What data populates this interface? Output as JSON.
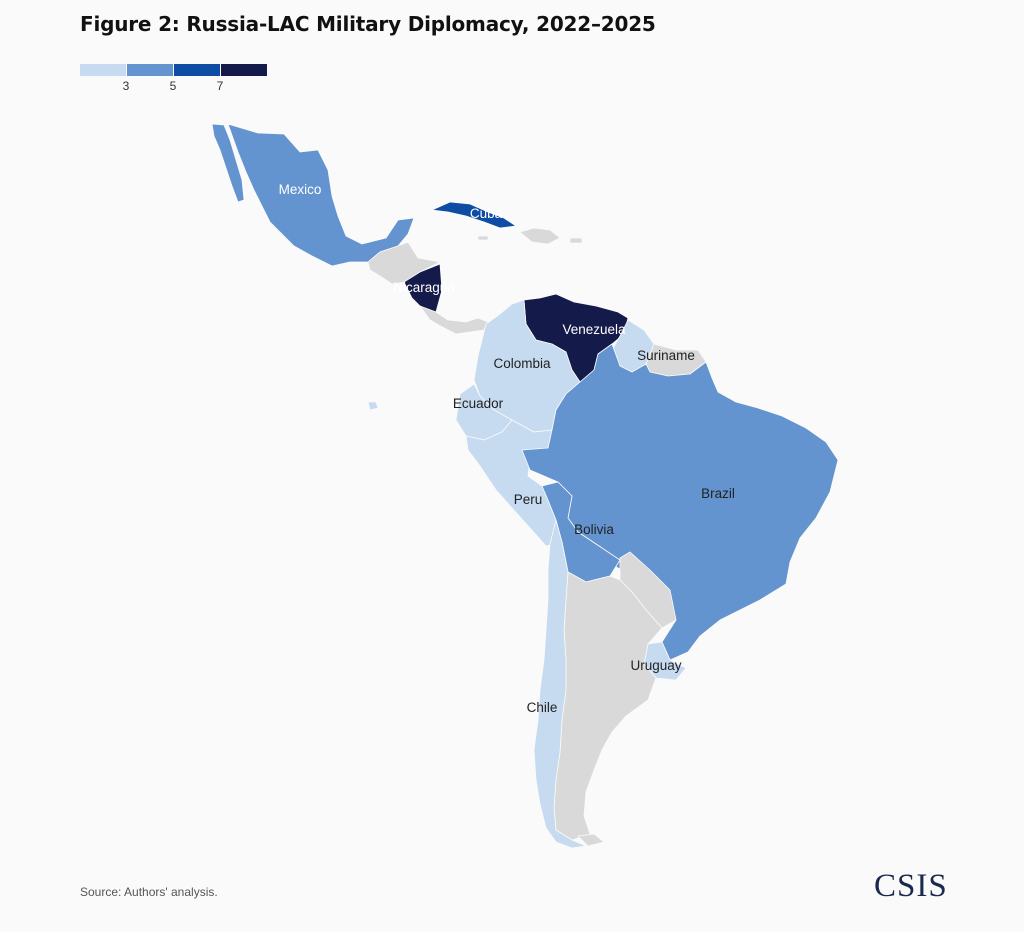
{
  "title": "Figure 2: Russia-LAC Military Diplomacy, 2022–2025",
  "legend": {
    "colors": [
      "#c6dbf0",
      "#6394cf",
      "#0e4da3",
      "#141a4a"
    ],
    "ticks": [
      "3",
      "5",
      "7"
    ]
  },
  "countries": {
    "mexico": "Mexico",
    "cuba": "Cuba",
    "nicaragua": "Nicaragua",
    "venezuela": "Venezuela",
    "colombia": "Colombia",
    "suriname": "Suriname",
    "ecuador": "Ecuador",
    "peru": "Peru",
    "brazil": "Brazil",
    "bolivia": "Bolivia",
    "uruguay": "Uruguay",
    "chile": "Chile"
  },
  "map_colors": {
    "no_data": "#d9d9d9",
    "light": "#c6dbf0",
    "medium": "#6394cf",
    "dark": "#0e4da3",
    "darkest": "#141a4a"
  },
  "source": "Source: Authors' analysis.",
  "logo": "CSIS"
}
